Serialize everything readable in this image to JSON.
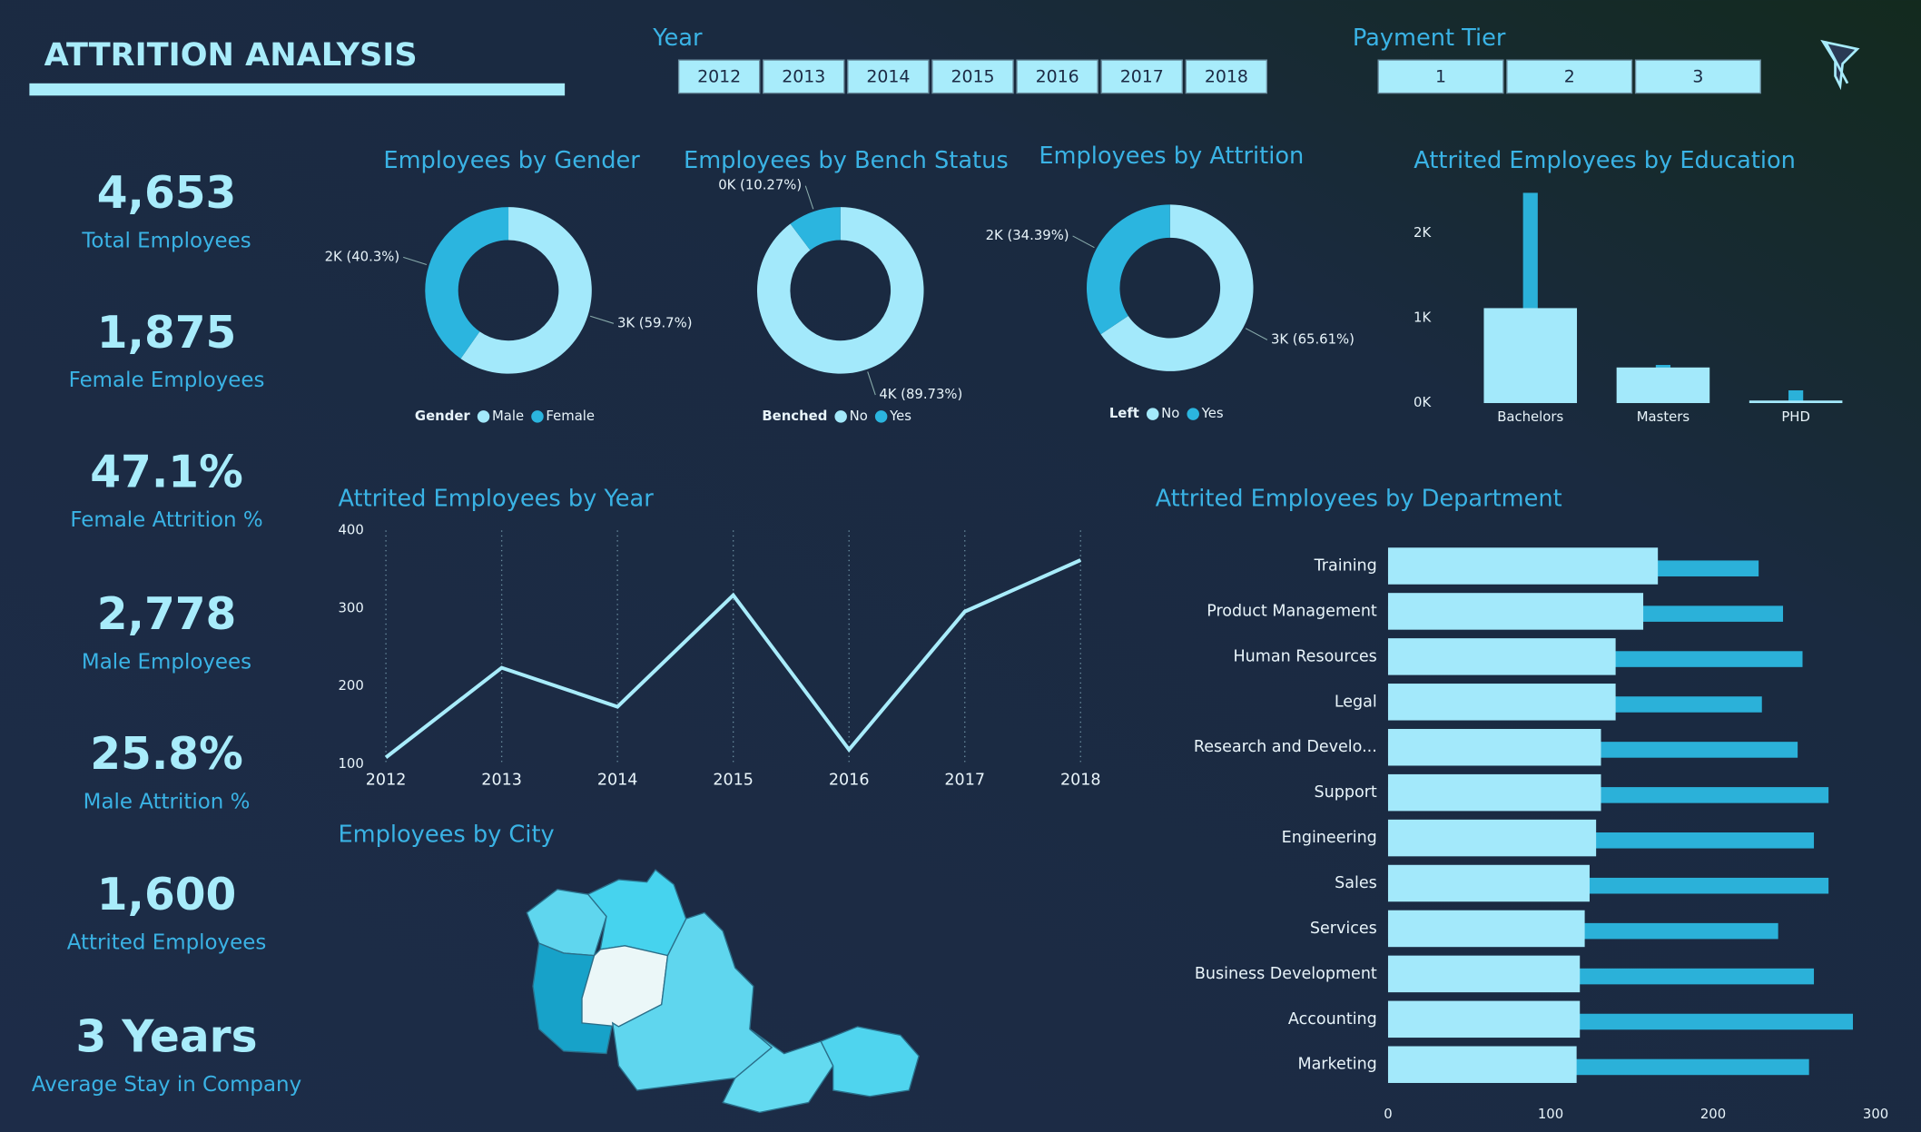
{
  "header": {
    "title": "ATTRITION ANALYSIS"
  },
  "slicers": [
    {
      "label": "Year",
      "options": [
        "2012",
        "2013",
        "2014",
        "2015",
        "2016",
        "2017",
        "2018"
      ]
    },
    {
      "label": "Payment Tier",
      "options": [
        "1",
        "2",
        "3"
      ]
    }
  ],
  "kpis": [
    {
      "value": "4,653",
      "label": "Total Employees"
    },
    {
      "value": "1,875",
      "label": "Female Employees"
    },
    {
      "value": "47.1%",
      "label": "Female Attrition %"
    },
    {
      "value": "2,778",
      "label": "Male Employees"
    },
    {
      "value": "25.8%",
      "label": "Male Attrition %"
    },
    {
      "value": "1,600",
      "label": "Attrited Employees"
    },
    {
      "value": "3 Years",
      "label": "Average Stay in Company"
    }
  ],
  "map": {
    "title": "Employees by City"
  },
  "chart_data": [
    {
      "type": "donut",
      "title": "Employees by Gender",
      "legend_title": "Gender",
      "categories": [
        "Male",
        "Female"
      ],
      "values": [
        2778,
        1875
      ],
      "value_labels": [
        "3K (59.7%)",
        "2K (40.3%)"
      ],
      "colors": [
        "#a3e9fb",
        "#2bb5df"
      ]
    },
    {
      "type": "donut",
      "title": "Employees by Bench Status",
      "legend_title": "Benched",
      "categories": [
        "No",
        "Yes"
      ],
      "values": [
        4175,
        478
      ],
      "value_labels": [
        "4K (89.73%)",
        "0K (10.27%)"
      ],
      "colors": [
        "#a3e9fb",
        "#2bb5df"
      ]
    },
    {
      "type": "donut",
      "title": "Employees by Attrition",
      "legend_title": "Left",
      "categories": [
        "No",
        "Yes"
      ],
      "values": [
        3053,
        1600
      ],
      "value_labels": [
        "3K (65.61%)",
        "2K (34.39%)"
      ],
      "colors": [
        "#a3e9fb",
        "#2bb5df"
      ]
    },
    {
      "type": "bar",
      "title": "Attrited Employees by Education",
      "categories": [
        "Bachelors",
        "Masters",
        "PHD"
      ],
      "series": [
        {
          "color": "#a3e9fb",
          "values": [
            1120,
            420,
            30
          ]
        },
        {
          "color": "#2bb1d9",
          "values": [
            2480,
            450,
            150
          ]
        }
      ],
      "ylim": [
        0,
        2500
      ],
      "yticks": [
        {
          "value": 0,
          "label": "0K"
        },
        {
          "value": 1000,
          "label": "1K"
        },
        {
          "value": 2000,
          "label": "2K"
        }
      ]
    },
    {
      "type": "line",
      "title": "Attrited Employees by Year",
      "color": "#a8ecfb",
      "x": [
        2012,
        2013,
        2014,
        2015,
        2016,
        2017,
        2018
      ],
      "values": [
        109,
        224,
        174,
        317,
        119,
        296,
        362
      ],
      "xlim": [
        2012,
        2018
      ],
      "xticks": [
        2012,
        2013,
        2014,
        2015,
        2016,
        2017,
        2018
      ],
      "ylim": [
        100,
        400
      ],
      "yticks": [
        100,
        200,
        300,
        400
      ],
      "grid": true
    },
    {
      "type": "hbar",
      "title": "Attrited Employees by Department",
      "categories": [
        "Training",
        "Product Management",
        "Human Resources",
        "Legal",
        "Research and Develo...",
        "Support",
        "Engineering",
        "Sales",
        "Services",
        "Business Development",
        "Accounting",
        "Marketing"
      ],
      "series": [
        {
          "color": "#a3e9fb",
          "values": [
            166,
            157,
            140,
            140,
            131,
            131,
            128,
            124,
            121,
            118,
            118,
            116
          ]
        },
        {
          "color": "#2bb1d9",
          "values": [
            228,
            243,
            255,
            230,
            252,
            271,
            262,
            271,
            240,
            262,
            286,
            259
          ]
        }
      ],
      "xlim": [
        0,
        300
      ],
      "xticks": [
        0,
        100,
        200,
        300
      ]
    }
  ]
}
